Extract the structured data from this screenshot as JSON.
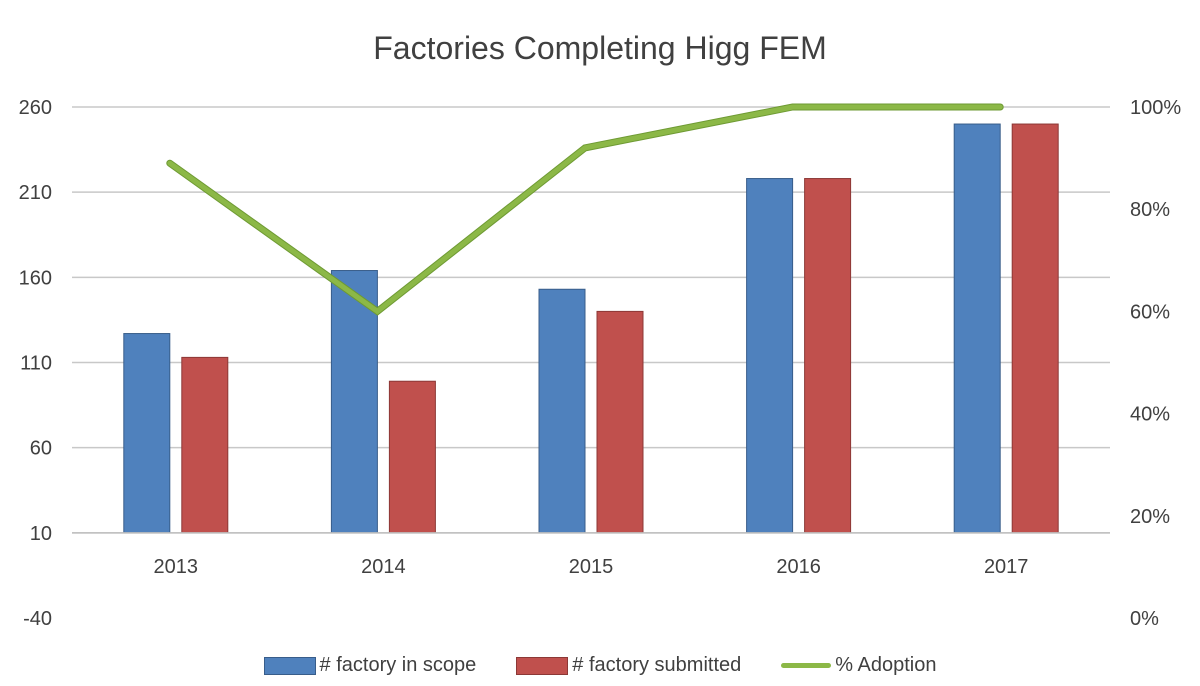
{
  "chart_data": {
    "type": "bar",
    "title": "Factories Completing Higg FEM",
    "categories": [
      "2013",
      "2014",
      "2015",
      "2016",
      "2017"
    ],
    "series": [
      {
        "name": "# factory in scope",
        "type": "bar",
        "axis": "left",
        "color": "#4F81BD",
        "values": [
          127,
          164,
          153,
          218,
          250
        ]
      },
      {
        "name": "# factory submitted",
        "type": "bar",
        "axis": "left",
        "color": "#C0504D",
        "values": [
          113,
          99,
          140,
          218,
          250
        ]
      },
      {
        "name": "% Adoption",
        "type": "line",
        "axis": "right",
        "color": "#8CB847",
        "values": [
          89,
          60,
          92,
          100,
          100
        ]
      }
    ],
    "left_axis": {
      "ticks": [
        260,
        210,
        160,
        110,
        60,
        10,
        -40
      ],
      "ylim": [
        -40,
        260
      ]
    },
    "right_axis": {
      "ticks": [
        "100%",
        "80%",
        "60%",
        "40%",
        "20%",
        "0%"
      ],
      "ylim": [
        0,
        100
      ]
    },
    "xlabel": "",
    "ylabel": "",
    "grid": true,
    "legend_position": "bottom"
  },
  "legend": {
    "items": [
      {
        "label": "# factory in scope",
        "color": "#4F81BD"
      },
      {
        "label": "# factory submitted",
        "color": "#C0504D"
      },
      {
        "label": "% Adoption",
        "color": "#8CB847"
      }
    ]
  }
}
